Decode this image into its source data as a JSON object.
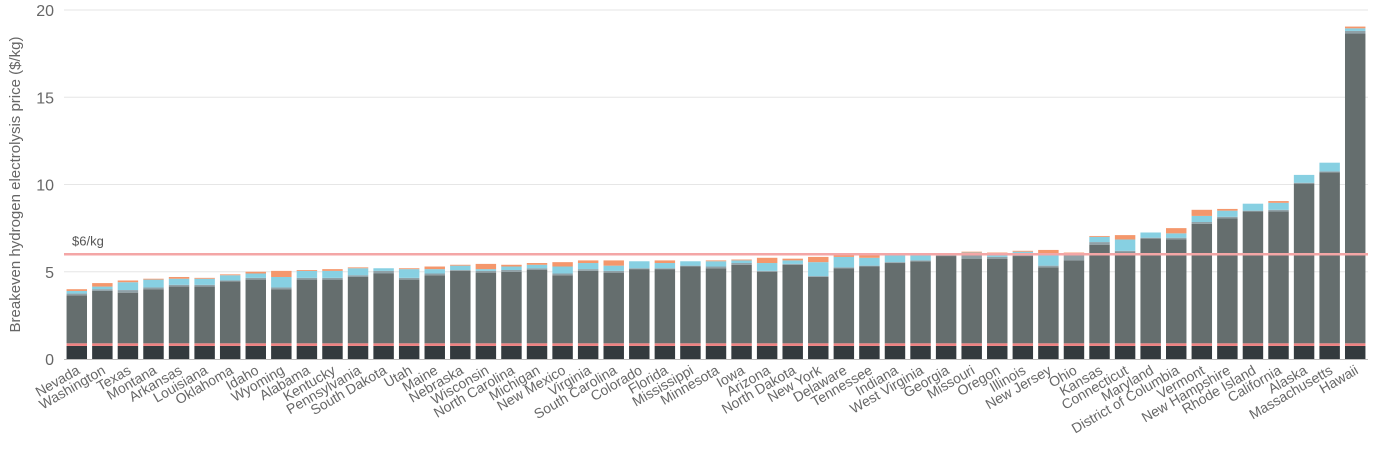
{
  "chart_data": {
    "type": "bar",
    "stacked": true,
    "ylabel": "Breakeven hydrogen electrolysis price ($/kg)",
    "xlabel": "",
    "ylim": [
      0,
      20
    ],
    "yticks": [
      0,
      5,
      10,
      15,
      20
    ],
    "grid": "horizontal",
    "reference_line": {
      "value": 6,
      "label": "$6/kg",
      "color": "#f4a6a6"
    },
    "categories": [
      "Nevada",
      "Washington",
      "Texas",
      "Montana",
      "Arkansas",
      "Louisiana",
      "Oklahoma",
      "Idaho",
      "Wyoming",
      "Alabama",
      "Kentucky",
      "Pennsylvania",
      "South Dakota",
      "Utah",
      "Maine",
      "Nebraska",
      "Wisconsin",
      "North Carolina",
      "Michigan",
      "New Mexico",
      "Virginia",
      "South Carolina",
      "Colorado",
      "Florida",
      "Mississippi",
      "Minnesota",
      "Iowa",
      "Arizona",
      "North Dakota",
      "New York",
      "Delaware",
      "Tennessee",
      "Indiana",
      "West Virginia",
      "Georgia",
      "Missouri",
      "Oregon",
      "Illinois",
      "New Jersey",
      "Ohio",
      "Kansas",
      "Connecticut",
      "Maryland",
      "District of Columbia",
      "Vermont",
      "New Hampshire",
      "Rhode Island",
      "California",
      "Alaska",
      "Massachusetts",
      "Hawaii"
    ],
    "series": [
      {
        "color": "#333a3e",
        "values": [
          0.75,
          0.75,
          0.75,
          0.75,
          0.75,
          0.75,
          0.75,
          0.75,
          0.75,
          0.75,
          0.75,
          0.75,
          0.75,
          0.75,
          0.75,
          0.75,
          0.75,
          0.75,
          0.75,
          0.75,
          0.75,
          0.75,
          0.75,
          0.75,
          0.75,
          0.75,
          0.75,
          0.75,
          0.75,
          0.75,
          0.75,
          0.75,
          0.75,
          0.75,
          0.75,
          0.75,
          0.75,
          0.75,
          0.75,
          0.75,
          0.75,
          0.75,
          0.75,
          0.75,
          0.75,
          0.75,
          0.75,
          0.75,
          0.75,
          0.75,
          0.75
        ]
      },
      {
        "color": "#f08080",
        "values": [
          0.15,
          0.15,
          0.15,
          0.15,
          0.15,
          0.15,
          0.15,
          0.15,
          0.15,
          0.15,
          0.15,
          0.15,
          0.15,
          0.15,
          0.15,
          0.15,
          0.15,
          0.15,
          0.15,
          0.15,
          0.15,
          0.15,
          0.15,
          0.15,
          0.15,
          0.15,
          0.15,
          0.15,
          0.15,
          0.15,
          0.15,
          0.15,
          0.15,
          0.15,
          0.15,
          0.15,
          0.15,
          0.15,
          0.15,
          0.15,
          0.15,
          0.15,
          0.15,
          0.15,
          0.15,
          0.15,
          0.15,
          0.15,
          0.15,
          0.15,
          0.15
        ]
      },
      {
        "color": "#656e6e",
        "values": [
          2.75,
          3.0,
          2.9,
          3.1,
          3.25,
          3.25,
          3.55,
          3.65,
          3.1,
          3.65,
          3.65,
          3.8,
          4.0,
          3.65,
          3.9,
          4.15,
          4.05,
          4.1,
          4.2,
          3.9,
          4.15,
          4.05,
          4.25,
          4.25,
          4.4,
          4.3,
          4.5,
          4.1,
          4.5,
          3.8,
          4.3,
          4.4,
          4.6,
          4.7,
          5.0,
          4.85,
          4.85,
          5.0,
          4.35,
          4.75,
          5.65,
          5.2,
          6.0,
          5.95,
          6.85,
          7.15,
          7.55,
          7.55,
          9.15,
          9.8,
          17.75
        ]
      },
      {
        "color": "#8fa0a6",
        "values": [
          0.1,
          0.1,
          0.15,
          0.1,
          0.1,
          0.1,
          0.05,
          0.1,
          0.1,
          0.1,
          0.1,
          0.1,
          0.15,
          0.1,
          0.1,
          0.05,
          0.1,
          0.1,
          0.1,
          0.1,
          0.1,
          0.1,
          0.05,
          0.05,
          0.05,
          0.1,
          0.1,
          0.05,
          0.05,
          0.05,
          0.05,
          0.05,
          0.05,
          0.05,
          0.05,
          0.25,
          0.1,
          0.05,
          0.1,
          0.35,
          0.15,
          0.1,
          0.05,
          0.1,
          0.1,
          0.1,
          0.05,
          0.1,
          0.05,
          0.05,
          0.15
        ]
      },
      {
        "color": "#87d0e2",
        "values": [
          0.15,
          0.15,
          0.45,
          0.45,
          0.35,
          0.35,
          0.3,
          0.25,
          0.6,
          0.4,
          0.4,
          0.4,
          0.15,
          0.5,
          0.25,
          0.25,
          0.1,
          0.2,
          0.2,
          0.4,
          0.35,
          0.3,
          0.4,
          0.3,
          0.25,
          0.3,
          0.15,
          0.45,
          0.2,
          0.8,
          0.6,
          0.45,
          0.4,
          0.3,
          0.0,
          0.1,
          0.1,
          0.2,
          0.6,
          0.05,
          0.3,
          0.65,
          0.3,
          0.25,
          0.35,
          0.35,
          0.4,
          0.4,
          0.45,
          0.5,
          0.15
        ]
      },
      {
        "color": "#f4976c",
        "values": [
          0.1,
          0.2,
          0.1,
          0.05,
          0.1,
          0.05,
          0.05,
          0.1,
          0.35,
          0.05,
          0.1,
          0.05,
          0.0,
          0.05,
          0.15,
          0.05,
          0.3,
          0.1,
          0.1,
          0.25,
          0.15,
          0.3,
          0.0,
          0.15,
          0.0,
          0.05,
          0.05,
          0.3,
          0.1,
          0.3,
          0.1,
          0.15,
          0.05,
          0.05,
          0.05,
          0.05,
          0.15,
          0.05,
          0.3,
          0.05,
          0.05,
          0.25,
          0.0,
          0.3,
          0.35,
          0.1,
          0.0,
          0.1,
          0.0,
          0.0,
          0.1
        ]
      }
    ]
  }
}
